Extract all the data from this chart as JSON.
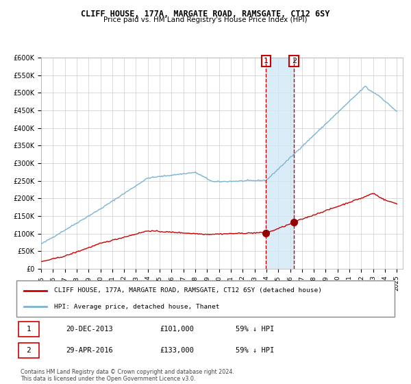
{
  "title1": "CLIFF HOUSE, 177A, MARGATE ROAD, RAMSGATE, CT12 6SY",
  "title2": "Price paid vs. HM Land Registry's House Price Index (HPI)",
  "xlabel": "",
  "ylabel": "",
  "ylim": [
    0,
    600000
  ],
  "yticks": [
    0,
    50000,
    100000,
    150000,
    200000,
    250000,
    300000,
    350000,
    400000,
    450000,
    500000,
    550000,
    600000
  ],
  "ytick_labels": [
    "£0",
    "£50K",
    "£100K",
    "£150K",
    "£200K",
    "£250K",
    "£300K",
    "£350K",
    "£400K",
    "£450K",
    "£500K",
    "£550K",
    "£600K"
  ],
  "hpi_color": "#7ab3d4",
  "price_color": "#cc0000",
  "marker_color": "#990000",
  "vline_color": "#cc0000",
  "shade_color": "#d0e8f5",
  "event1_year": 2013.97,
  "event2_year": 2016.33,
  "event1_price": 101000,
  "event2_price": 133000,
  "legend_box_color": "#ffffff",
  "legend_border_color": "#aaaaaa",
  "grid_color": "#cccccc",
  "bg_color": "#ffffff",
  "footnote": "Contains HM Land Registry data © Crown copyright and database right 2024.\nThis data is licensed under the Open Government Licence v3.0.",
  "table_row1": [
    "1",
    "20-DEC-2013",
    "£101,000",
    "59% ↓ HPI"
  ],
  "table_row2": [
    "2",
    "29-APR-2016",
    "£133,000",
    "59% ↓ HPI"
  ],
  "legend_line1": "CLIFF HOUSE, 177A, MARGATE ROAD, RAMSGATE, CT12 6SY (detached house)",
  "legend_line2": "HPI: Average price, detached house, Thanet"
}
